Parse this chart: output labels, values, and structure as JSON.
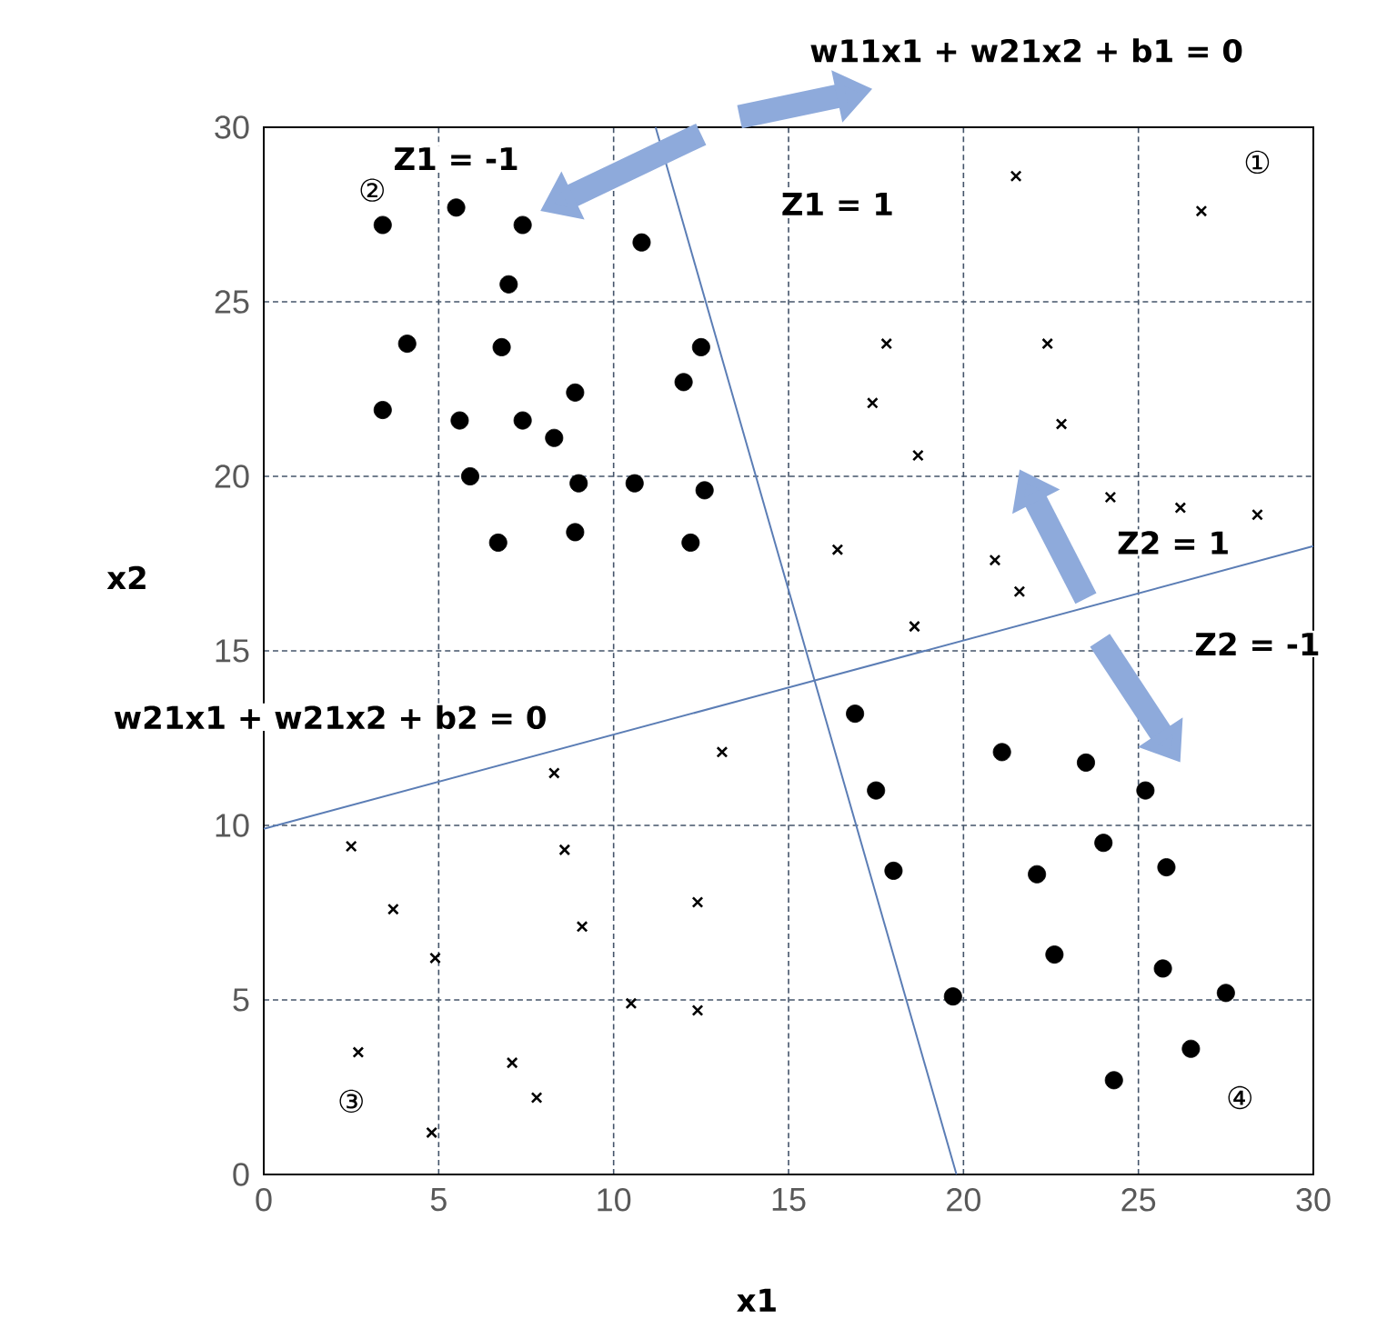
{
  "chart_data": {
    "type": "scatter",
    "xlabel": "x1",
    "ylabel": "x2",
    "xlim": [
      0,
      30
    ],
    "ylim": [
      0,
      30
    ],
    "xticks": [
      0,
      5,
      10,
      15,
      20,
      25,
      30
    ],
    "yticks": [
      0,
      5,
      10,
      15,
      20,
      25,
      30
    ],
    "grid": true,
    "series": [
      {
        "marker": "circle",
        "color": "#000000",
        "x": [
          3.4,
          5.5,
          7.4,
          10.8,
          7.0,
          4.1,
          6.8,
          12.5,
          12.0,
          8.9,
          3.4,
          5.6,
          7.4,
          8.3,
          5.9,
          9.0,
          10.6,
          12.6,
          6.7,
          8.9,
          12.2,
          16.9,
          21.1,
          23.5,
          25.2,
          17.5,
          24.0,
          18.0,
          22.1,
          25.8,
          22.6,
          25.7,
          19.7,
          27.5,
          26.5,
          24.3
        ],
        "values": [
          27.2,
          27.7,
          27.2,
          26.7,
          25.5,
          23.8,
          23.7,
          23.7,
          22.7,
          22.4,
          21.9,
          21.6,
          21.6,
          21.1,
          20.0,
          19.8,
          19.8,
          19.6,
          18.1,
          18.4,
          18.1,
          13.2,
          12.1,
          11.8,
          11.0,
          11.0,
          9.5,
          8.7,
          8.6,
          8.8,
          6.3,
          5.9,
          5.1,
          5.2,
          3.6,
          2.7
        ]
      },
      {
        "marker": "cross",
        "color": "#000000",
        "x": [
          21.5,
          26.8,
          17.8,
          22.4,
          17.4,
          22.8,
          18.7,
          24.2,
          26.2,
          28.4,
          16.4,
          20.9,
          21.6,
          18.6,
          13.1,
          8.3,
          2.5,
          8.6,
          3.7,
          12.4,
          9.1,
          4.9,
          10.5,
          12.4,
          2.7,
          7.1,
          7.8,
          4.8
        ],
        "values": [
          28.6,
          27.6,
          23.8,
          23.8,
          22.1,
          21.5,
          20.6,
          19.4,
          19.1,
          18.9,
          17.9,
          17.6,
          16.7,
          15.7,
          12.1,
          11.5,
          9.4,
          9.3,
          7.6,
          7.8,
          7.1,
          6.2,
          4.9,
          4.7,
          3.5,
          3.2,
          2.2,
          1.2
        ]
      },
      {
        "type": "line",
        "marker": "none",
        "color": "#5b7db5",
        "x": [
          11.2,
          19.8
        ],
        "values": [
          30,
          0
        ]
      },
      {
        "type": "line",
        "marker": "none",
        "color": "#5b7db5",
        "x": [
          0,
          30
        ],
        "values": [
          9.9,
          18.0
        ]
      }
    ],
    "annotations": [
      "w11x1 + w21x2 + b1 = 0",
      "Z1 = -1",
      "Z1 = 1",
      "Z2 = 1",
      "Z2 = -1",
      "w21x1 + w21x2 + b2 = 0",
      "①",
      "②",
      "③",
      "④"
    ]
  }
}
